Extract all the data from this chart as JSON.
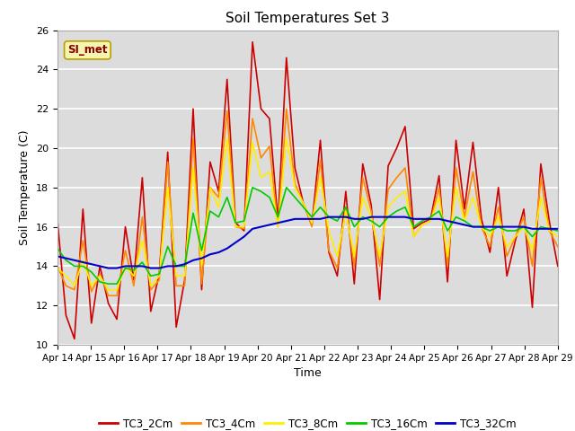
{
  "title": "Soil Temperatures Set 3",
  "xlabel": "Time",
  "ylabel": "Soil Temperature (C)",
  "ylim": [
    10,
    26
  ],
  "xlim": [
    0,
    15
  ],
  "background_color": "#dcdcdc",
  "plot_bg_color": "#dcdcdc",
  "grid_color": "white",
  "annotation_text": "SI_met",
  "annotation_color": "#8B0000",
  "annotation_bg": "#f5f5b0",
  "annotation_border": "#b8a000",
  "x_tick_labels": [
    "Apr 14",
    "Apr 15",
    "Apr 16",
    "Apr 17",
    "Apr 18",
    "Apr 19",
    "Apr 20",
    "Apr 21",
    "Apr 22",
    "Apr 23",
    "Apr 24",
    "Apr 25",
    "Apr 26",
    "Apr 27",
    "Apr 28",
    "Apr 29"
  ],
  "series": {
    "TC3_2Cm": {
      "color": "#cc0000",
      "lw": 1.2,
      "values": [
        16.3,
        11.5,
        10.3,
        16.9,
        11.1,
        14.0,
        12.1,
        11.3,
        16.0,
        13.3,
        18.5,
        11.7,
        13.6,
        19.8,
        10.9,
        13.3,
        22.0,
        12.8,
        19.3,
        17.8,
        23.5,
        16.2,
        15.8,
        25.4,
        22.0,
        21.5,
        16.3,
        24.6,
        19.0,
        17.2,
        16.1,
        20.4,
        14.7,
        13.5,
        17.8,
        13.1,
        19.2,
        17.1,
        12.3,
        19.1,
        20.0,
        21.1,
        15.9,
        16.2,
        16.4,
        18.6,
        13.2,
        20.4,
        16.9,
        20.3,
        16.4,
        14.7,
        18.0,
        13.5,
        15.3,
        16.9,
        11.9,
        19.2,
        16.3,
        14.0
      ]
    },
    "TC3_4Cm": {
      "color": "#ff8800",
      "lw": 1.2,
      "values": [
        14.0,
        13.0,
        12.8,
        15.3,
        12.7,
        13.6,
        12.5,
        12.5,
        14.8,
        13.0,
        16.5,
        12.8,
        13.3,
        19.3,
        13.0,
        13.0,
        20.5,
        13.1,
        18.0,
        17.5,
        21.9,
        16.0,
        15.9,
        21.5,
        19.5,
        20.1,
        16.0,
        22.0,
        18.2,
        17.2,
        16.0,
        19.4,
        14.8,
        13.9,
        17.0,
        14.0,
        18.5,
        16.8,
        14.0,
        17.9,
        18.5,
        19.0,
        15.5,
        16.1,
        16.3,
        18.0,
        14.0,
        19.0,
        16.5,
        18.8,
        16.0,
        15.0,
        17.0,
        14.5,
        15.5,
        16.5,
        14.0,
        18.5,
        15.8,
        15.0
      ]
    },
    "TC3_8Cm": {
      "color": "#ffee00",
      "lw": 1.2,
      "values": [
        13.9,
        13.5,
        13.0,
        14.3,
        13.0,
        13.5,
        12.8,
        12.8,
        14.0,
        13.5,
        15.3,
        13.0,
        13.5,
        18.0,
        13.5,
        13.5,
        19.0,
        14.0,
        18.0,
        17.0,
        20.5,
        16.0,
        16.0,
        20.3,
        18.5,
        18.8,
        16.0,
        20.5,
        18.0,
        17.2,
        16.2,
        18.5,
        15.8,
        14.5,
        16.8,
        14.5,
        17.5,
        16.5,
        14.5,
        17.0,
        17.5,
        17.8,
        15.5,
        16.1,
        16.3,
        17.5,
        14.5,
        18.0,
        16.3,
        17.5,
        16.0,
        15.5,
        16.5,
        15.0,
        15.5,
        16.0,
        14.8,
        17.5,
        15.8,
        15.5
      ]
    },
    "TC3_16Cm": {
      "color": "#00cc00",
      "lw": 1.2,
      "values": [
        14.9,
        14.3,
        14.0,
        14.0,
        13.7,
        13.2,
        13.1,
        13.1,
        13.9,
        13.8,
        14.2,
        13.5,
        13.6,
        15.0,
        14.0,
        14.0,
        16.7,
        14.8,
        16.8,
        16.5,
        17.5,
        16.2,
        16.3,
        18.0,
        17.8,
        17.5,
        16.5,
        18.0,
        17.5,
        17.0,
        16.5,
        17.0,
        16.5,
        16.3,
        17.0,
        16.0,
        16.5,
        16.3,
        16.0,
        16.5,
        16.8,
        17.0,
        16.0,
        16.3,
        16.5,
        16.8,
        15.8,
        16.5,
        16.3,
        16.0,
        16.0,
        15.8,
        16.0,
        15.8,
        15.8,
        16.0,
        15.5,
        16.0,
        15.9,
        15.8
      ]
    },
    "TC3_32Cm": {
      "color": "#0000cc",
      "lw": 1.5,
      "values": [
        14.5,
        14.4,
        14.3,
        14.2,
        14.1,
        14.0,
        13.9,
        13.9,
        14.0,
        14.0,
        14.0,
        13.9,
        13.9,
        14.0,
        14.0,
        14.1,
        14.3,
        14.4,
        14.6,
        14.7,
        14.9,
        15.2,
        15.5,
        15.9,
        16.0,
        16.1,
        16.2,
        16.3,
        16.4,
        16.4,
        16.4,
        16.4,
        16.5,
        16.5,
        16.5,
        16.4,
        16.4,
        16.5,
        16.5,
        16.5,
        16.5,
        16.5,
        16.4,
        16.4,
        16.4,
        16.4,
        16.3,
        16.2,
        16.1,
        16.0,
        16.0,
        16.0,
        16.0,
        16.0,
        16.0,
        16.0,
        15.9,
        15.9,
        15.9,
        15.9
      ]
    }
  }
}
